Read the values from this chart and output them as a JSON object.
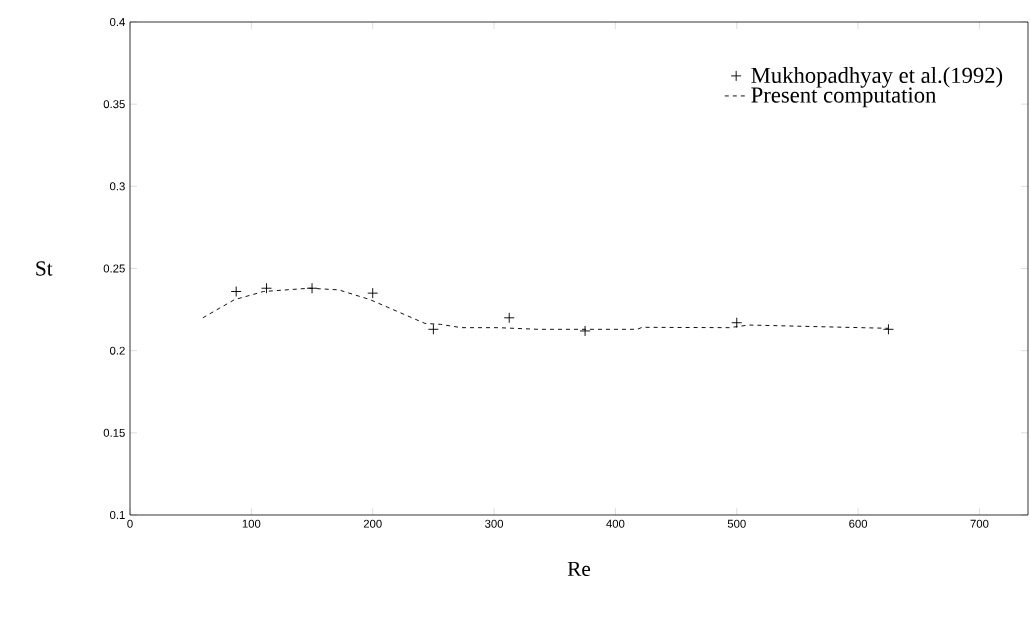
{
  "chart_data": {
    "type": "line",
    "xlabel": "Re",
    "ylabel": "St",
    "xlim": [
      0,
      740
    ],
    "ylim": [
      0.1,
      0.4
    ],
    "xticks": [
      0,
      100,
      200,
      300,
      400,
      500,
      600,
      700
    ],
    "yticks": [
      0.1,
      0.15,
      0.2,
      0.25,
      0.3,
      0.35,
      0.4
    ],
    "grid": false,
    "legend": "top right",
    "series": [
      {
        "name": "Mukhopadhyay et al.(1992)",
        "type": "scatter",
        "marker": "cross",
        "color": "#000000",
        "x": [
          87.5,
          112.5,
          150,
          200,
          250,
          312.5,
          375,
          500,
          625
        ],
        "values": [
          0.236,
          0.238,
          0.238,
          0.235,
          0.213,
          0.22,
          0.212,
          0.217,
          0.213
        ]
      },
      {
        "name": "Present computation",
        "type": "line",
        "line_style": "dashed",
        "color": "#000000",
        "x": [
          60,
          86,
          110,
          148,
          172,
          198,
          243,
          256,
          273,
          303,
          336,
          418,
          422,
          494,
          510,
          625
        ],
        "values": [
          0.22,
          0.231,
          0.236,
          0.238,
          0.237,
          0.231,
          0.2166,
          0.216,
          0.214,
          0.214,
          0.213,
          0.213,
          0.2142,
          0.214,
          0.2156,
          0.2136
        ]
      }
    ]
  }
}
